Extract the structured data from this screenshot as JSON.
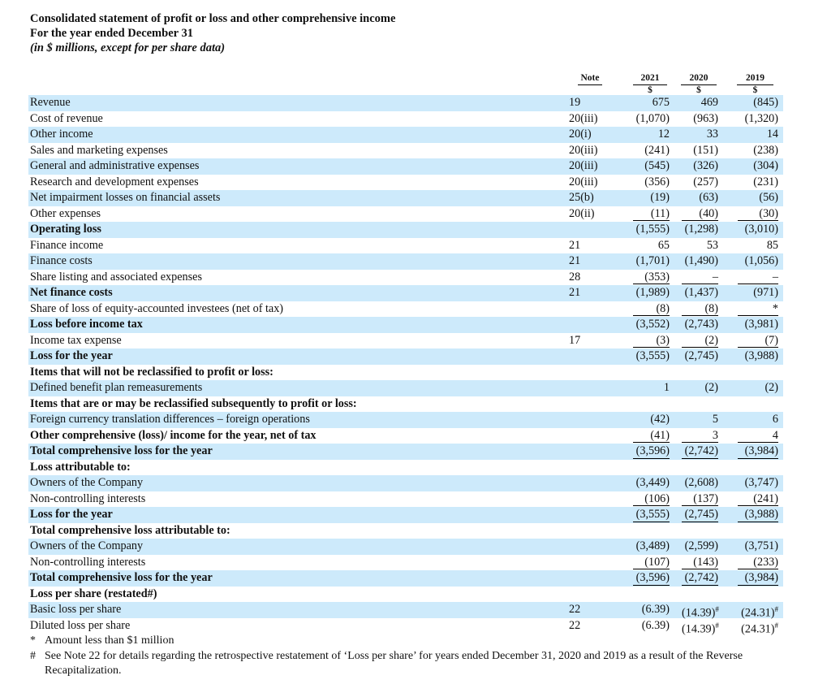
{
  "header": {
    "title": "Consolidated statement of profit or loss and other comprehensive income",
    "period": "For the year ended December 31",
    "units": "(in $ millions, except for per share data)"
  },
  "columns": {
    "note": "Note",
    "years": [
      "2021",
      "2020",
      "2019"
    ],
    "currency": "$"
  },
  "rows": [
    {
      "label": "Revenue",
      "note": "19",
      "values": [
        "675",
        "469",
        "(845)"
      ]
    },
    {
      "label": "Cost of revenue",
      "note": "20(iii)",
      "values": [
        "(1,070)",
        "(963)",
        "(1,320)"
      ]
    },
    {
      "label": "Other income",
      "note": "20(i)",
      "values": [
        "12",
        "33",
        "14"
      ]
    },
    {
      "label": "Sales and marketing expenses",
      "note": "20(iii)",
      "values": [
        "(241)",
        "(151)",
        "(238)"
      ]
    },
    {
      "label": "General and administrative expenses",
      "note": "20(iii)",
      "values": [
        "(545)",
        "(326)",
        "(304)"
      ]
    },
    {
      "label": "Research and development expenses",
      "note": "20(iii)",
      "values": [
        "(356)",
        "(257)",
        "(231)"
      ]
    },
    {
      "label": "Net impairment losses on financial assets",
      "note": "25(b)",
      "values": [
        "(19)",
        "(63)",
        "(56)"
      ]
    },
    {
      "label": "Other expenses",
      "note": "20(ii)",
      "values": [
        "(11)",
        "(40)",
        "(30)"
      ],
      "underline": true
    },
    {
      "label": "Operating loss",
      "note": "",
      "values": [
        "(1,555)",
        "(1,298)",
        "(3,010)"
      ],
      "bold": true
    },
    {
      "label": "Finance income",
      "note": "21",
      "values": [
        "65",
        "53",
        "85"
      ]
    },
    {
      "label": "Finance costs",
      "note": "21",
      "values": [
        "(1,701)",
        "(1,490)",
        "(1,056)"
      ]
    },
    {
      "label": "Share listing and associated expenses",
      "note": "28",
      "values": [
        "(353)",
        "–",
        "–"
      ],
      "underline": true
    },
    {
      "label": "Net finance costs",
      "note": "21",
      "values": [
        "(1,989)",
        "(1,437)",
        "(971)"
      ],
      "bold": true
    },
    {
      "label": "Share of loss of equity-accounted investees (net of tax)",
      "note": "",
      "values": [
        "(8)",
        "(8)",
        "*"
      ],
      "underline": true
    },
    {
      "label": "Loss before income tax",
      "note": "",
      "values": [
        "(3,552)",
        "(2,743)",
        "(3,981)"
      ],
      "bold": true
    },
    {
      "label": "Income tax expense",
      "note": "17",
      "values": [
        "(3)",
        "(2)",
        "(7)"
      ],
      "underline": true
    },
    {
      "label": "Loss for the year",
      "note": "",
      "values": [
        "(3,555)",
        "(2,745)",
        "(3,988)"
      ],
      "bold": true
    },
    {
      "label": "Items that will not be reclassified to profit or loss:",
      "note": "",
      "values": [
        "",
        "",
        ""
      ],
      "bold": true
    },
    {
      "label": "Defined benefit plan remeasurements",
      "note": "",
      "values": [
        "1",
        "(2)",
        "(2)"
      ]
    },
    {
      "label": "Items that are or may be reclassified subsequently to profit or loss:",
      "note": "",
      "values": [
        "",
        "",
        ""
      ],
      "bold": true
    },
    {
      "label": "Foreign currency translation differences – foreign operations",
      "note": "",
      "values": [
        "(42)",
        "5",
        "6"
      ]
    },
    {
      "label": "Other comprehensive (loss)/ income for the year, net of tax",
      "note": "",
      "values": [
        "(41)",
        "3",
        "4"
      ],
      "bold": true,
      "underline": true
    },
    {
      "label": "Total comprehensive loss for the year",
      "note": "",
      "values": [
        "(3,596)",
        "(2,742)",
        "(3,984)"
      ],
      "bold": true,
      "underline": true
    },
    {
      "label": "Loss attributable to:",
      "note": "",
      "values": [
        "",
        "",
        ""
      ],
      "bold": true
    },
    {
      "label": "Owners of the Company",
      "note": "",
      "values": [
        "(3,449)",
        "(2,608)",
        "(3,747)"
      ]
    },
    {
      "label": "Non-controlling interests",
      "note": "",
      "values": [
        "(106)",
        "(137)",
        "(241)"
      ],
      "underline": true
    },
    {
      "label": "Loss for the year",
      "note": "",
      "values": [
        "(3,555)",
        "(2,745)",
        "(3,988)"
      ],
      "bold": true,
      "underline": true
    },
    {
      "label": "Total comprehensive loss attributable to:",
      "note": "",
      "values": [
        "",
        "",
        ""
      ],
      "bold": true
    },
    {
      "label": "Owners of the Company",
      "note": "",
      "values": [
        "(3,489)",
        "(2,599)",
        "(3,751)"
      ]
    },
    {
      "label": "Non-controlling interests",
      "note": "",
      "values": [
        "(107)",
        "(143)",
        "(233)"
      ],
      "underline": true
    },
    {
      "label": "Total comprehensive loss for the year",
      "note": "",
      "values": [
        "(3,596)",
        "(2,742)",
        "(3,984)"
      ],
      "bold": true,
      "underline": true
    },
    {
      "label": "Loss per share (restated#)",
      "note": "",
      "values": [
        "",
        "",
        ""
      ],
      "bold": true
    },
    {
      "label": "Basic loss per share",
      "note": "22",
      "values": [
        "(6.39)",
        "(14.39)",
        "(24.31)"
      ],
      "marks": [
        "",
        "#",
        "#"
      ]
    },
    {
      "label": "Diluted loss per share",
      "note": "22",
      "values": [
        "(6.39)",
        "(14.39)",
        "(24.31)"
      ],
      "marks": [
        "",
        "#",
        "#"
      ]
    }
  ],
  "footnotes": [
    {
      "mark": "*",
      "text": "Amount less than $1 million"
    },
    {
      "mark": "#",
      "text": "See Note 22 for details regarding the retrospective restatement of ‘Loss per share’ for years ended December 31, 2020 and 2019 as a result of the Reverse Recapitalization."
    }
  ],
  "colors": {
    "row_shade": "#cdeafb"
  }
}
